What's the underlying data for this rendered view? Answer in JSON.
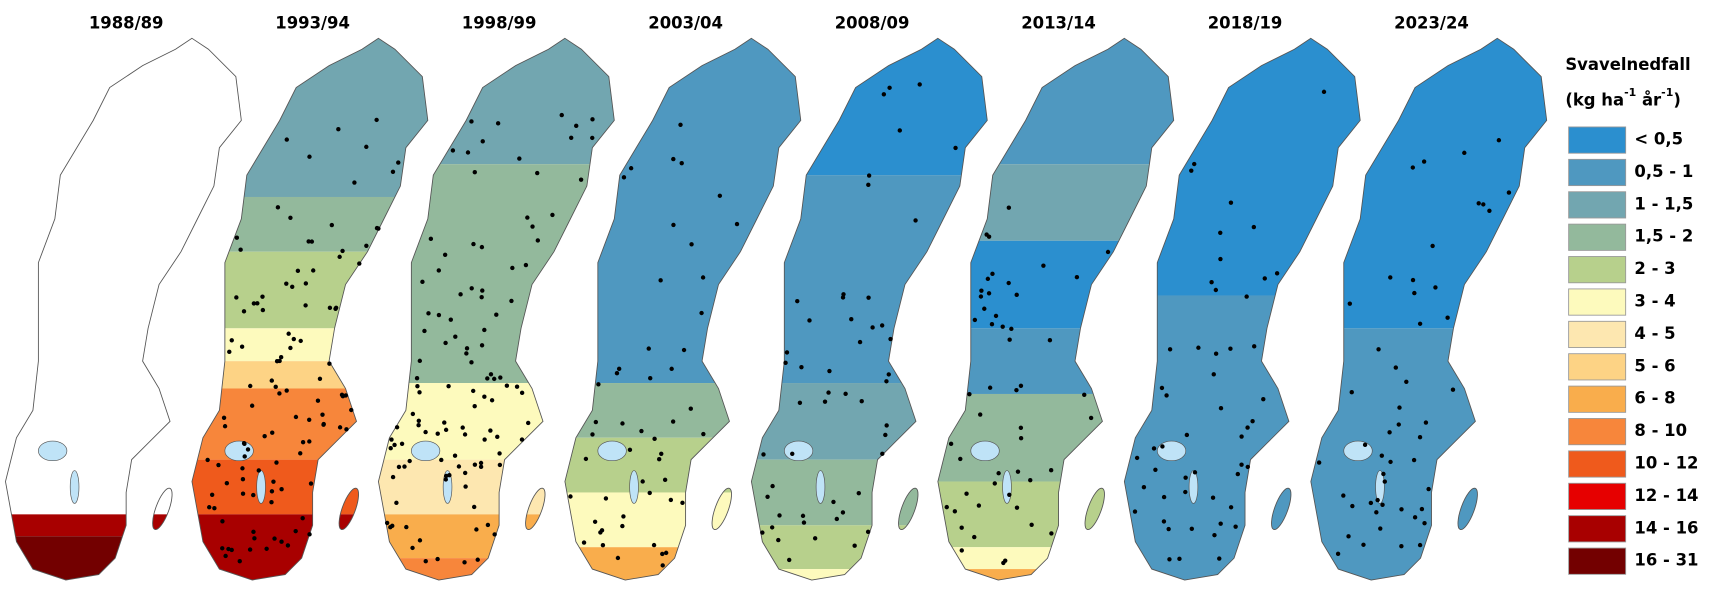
{
  "maps": [
    {
      "title": "1988/89"
    },
    {
      "title": "1993/94"
    },
    {
      "title": "1998/99"
    },
    {
      "title": "2003/04"
    },
    {
      "title": "2008/09"
    },
    {
      "title": "2013/14"
    },
    {
      "title": "2018/19"
    },
    {
      "title": "2023/24"
    }
  ],
  "legend": {
    "title": "Svavelnedfall",
    "unit_parts": [
      "(kg ha",
      "-1",
      " år",
      "-1",
      ")"
    ],
    "classes": [
      {
        "label": "< 0,5",
        "color": "#2b8fcf"
      },
      {
        "label": "0,5 - 1",
        "color": "#4f98c0"
      },
      {
        "label": "1 - 1,5",
        "color": "#72a6b0"
      },
      {
        "label": "1,5 - 2",
        "color": "#93b99c"
      },
      {
        "label": "2 - 3",
        "color": "#b7d08c"
      },
      {
        "label": "3 - 4",
        "color": "#fdfabd"
      },
      {
        "label": "4 - 5",
        "color": "#fde7b0"
      },
      {
        "label": "5 - 6",
        "color": "#fdd385"
      },
      {
        "label": "6 - 8",
        "color": "#f9ad4c"
      },
      {
        "label": "8 - 10",
        "color": "#f7863b"
      },
      {
        "label": "10 - 12",
        "color": "#ef5a1c"
      },
      {
        "label": "12 - 14",
        "color": "#e60000"
      },
      {
        "label": "14 - 16",
        "color": "#a80000"
      },
      {
        "label": "16 - 31",
        "color": "#730000"
      }
    ]
  }
}
